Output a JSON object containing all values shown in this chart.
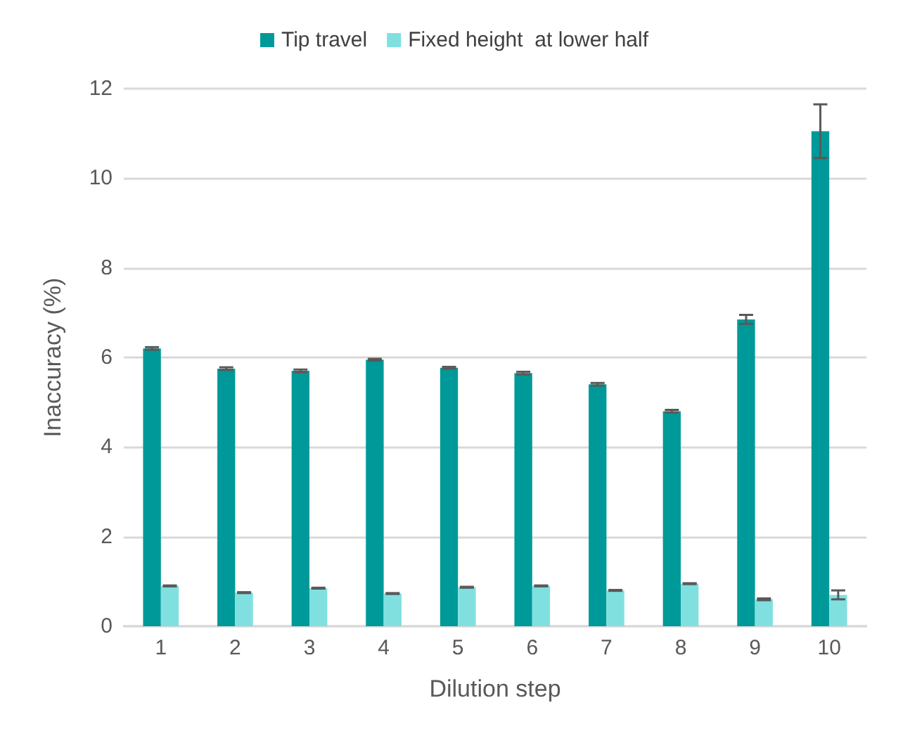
{
  "chart_data": {
    "type": "bar",
    "xlabel": "Dilution step",
    "ylabel": "Inaccuracy (%)",
    "categories": [
      "1",
      "2",
      "3",
      "4",
      "5",
      "6",
      "7",
      "8",
      "9",
      "10"
    ],
    "series": [
      {
        "name": "Tip travel",
        "color": "#009999",
        "values": [
          6.2,
          5.75,
          5.7,
          5.95,
          5.77,
          5.65,
          5.4,
          4.8,
          6.85,
          11.05
        ],
        "errors": [
          0.03,
          0.03,
          0.03,
          0.02,
          0.02,
          0.03,
          0.03,
          0.03,
          0.1,
          0.6
        ]
      },
      {
        "name": "Fixed height  at lower half",
        "color": "#80e0e0",
        "values": [
          0.9,
          0.75,
          0.85,
          0.73,
          0.87,
          0.9,
          0.8,
          0.95,
          0.6,
          0.7
        ],
        "errors": [
          0.01,
          0.01,
          0.01,
          0.01,
          0.01,
          0.01,
          0.01,
          0.01,
          0.02,
          0.1
        ]
      }
    ],
    "ylim": [
      0,
      12
    ],
    "yticks": [
      0,
      2,
      4,
      6,
      8,
      10,
      12
    ],
    "grid": "y",
    "legend": "top"
  }
}
